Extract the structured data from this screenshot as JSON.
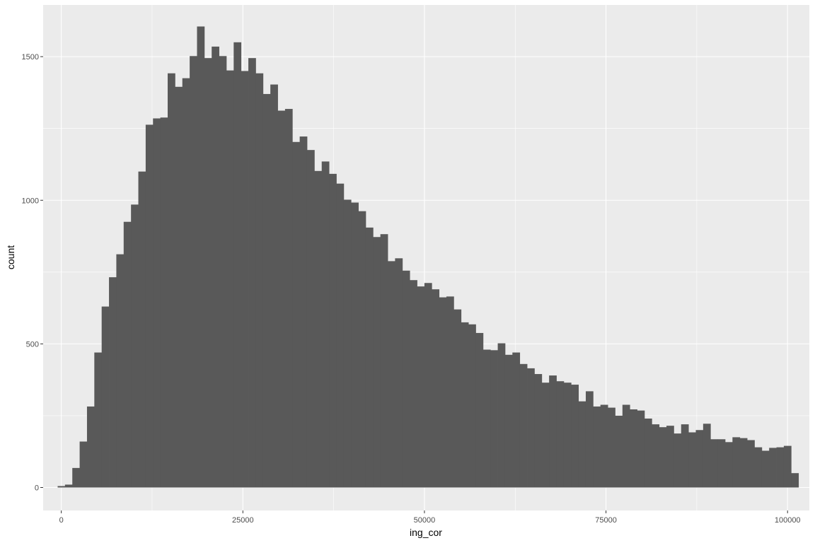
{
  "colors": {
    "panel_background": "#EBEBEB",
    "grid_major": "#FFFFFF",
    "bar_fill": "#595959",
    "tick_text": "#4D4D4D",
    "tick_mark": "#333333",
    "axis_title": "#000000"
  },
  "chart_data": {
    "type": "bar",
    "subtype": "histogram",
    "xlabel": "ing_cor",
    "ylabel": "count",
    "xlim": [
      -2500,
      103000
    ],
    "ylim": [
      -80,
      1680
    ],
    "x_ticks": [
      0,
      25000,
      50000,
      75000,
      100000
    ],
    "x_tick_labels": [
      "0",
      "25000",
      "50000",
      "75000",
      "100000"
    ],
    "y_ticks": [
      0,
      500,
      1000,
      1500
    ],
    "y_tick_labels": [
      "0",
      "500",
      "1000",
      "1500"
    ],
    "x_minor_gridlines": [
      12500,
      37500,
      62500,
      87500
    ],
    "y_minor_gridlines": [
      250,
      750,
      1250
    ],
    "grid": true,
    "legend": "none",
    "bin_width": 1010,
    "first_bin_start": -505,
    "values": [
      5,
      10,
      68,
      160,
      282,
      470,
      630,
      732,
      812,
      925,
      985,
      1100,
      1263,
      1285,
      1288,
      1442,
      1395,
      1425,
      1502,
      1605,
      1495,
      1535,
      1502,
      1452,
      1550,
      1450,
      1495,
      1442,
      1370,
      1403,
      1312,
      1318,
      1203,
      1222,
      1175,
      1102,
      1135,
      1092,
      1058,
      1002,
      992,
      962,
      905,
      872,
      882,
      788,
      798,
      755,
      722,
      700,
      712,
      690,
      662,
      665,
      620,
      575,
      568,
      538,
      480,
      478,
      502,
      462,
      470,
      430,
      415,
      395,
      365,
      390,
      370,
      365,
      358,
      300,
      335,
      282,
      288,
      278,
      250,
      288,
      272,
      268,
      240,
      220,
      210,
      215,
      188,
      220,
      192,
      200,
      222,
      168,
      168,
      158,
      175,
      172,
      165,
      140,
      128,
      138,
      140,
      145,
      50
    ]
  }
}
